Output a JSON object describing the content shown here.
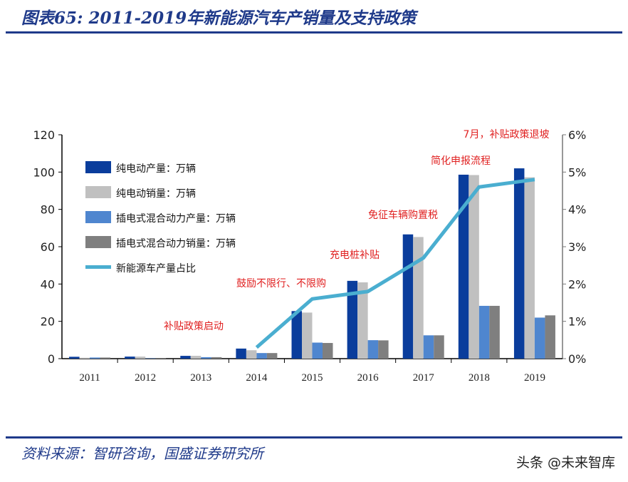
{
  "header": {
    "title": "图表65: 2011-2019年新能源汽车产销量及支持政策"
  },
  "footer": {
    "source": "资料来源：智研咨询，国盛证券研究所",
    "watermark": "头条 @未来智库"
  },
  "chart_data": {
    "type": "bar",
    "categories": [
      "2011",
      "2012",
      "2013",
      "2014",
      "2015",
      "2016",
      "2017",
      "2018",
      "2019"
    ],
    "ylim": [
      0,
      120
    ],
    "yticks": [
      "0",
      "20",
      "40",
      "60",
      "80",
      "100",
      "120"
    ],
    "y2lim": [
      0,
      6
    ],
    "y2ticks": [
      "0%",
      "1%",
      "2%",
      "3%",
      "4%",
      "5%",
      "6%"
    ],
    "series": [
      {
        "name": "纯电动产量：万辆",
        "color": "#0a3d9c",
        "values": [
          1.0,
          1.1,
          1.5,
          5.4,
          25.5,
          41.7,
          66.6,
          98.6,
          102.0
        ]
      },
      {
        "name": "纯电动销量：万辆",
        "color": "#c0c0c0",
        "values": [
          0.5,
          1.1,
          1.5,
          4.5,
          24.7,
          40.9,
          65.2,
          98.4,
          97.2
        ]
      },
      {
        "name": "插电式混合动力产量：万辆",
        "color": "#4f86cf",
        "values": [
          0.6,
          0.2,
          0.8,
          3.0,
          8.6,
          9.9,
          12.5,
          28.3,
          22.0
        ]
      },
      {
        "name": "插电式混合动力销量：万辆",
        "color": "#7f7f7f",
        "values": [
          0.6,
          0.2,
          0.8,
          3.0,
          8.4,
          9.8,
          12.5,
          28.3,
          23.2
        ]
      },
      {
        "name": "新能源车产量占比",
        "type": "line",
        "axis": "right",
        "color": "#4aaed0",
        "values": [
          null,
          null,
          null,
          0.3,
          1.6,
          1.8,
          2.7,
          4.6,
          4.8
        ]
      }
    ],
    "annotations": [
      {
        "text": "补贴政策启动",
        "year": "2013"
      },
      {
        "text": "鼓励不限行、不限购",
        "year": "2014"
      },
      {
        "text": "充电桩补贴",
        "year": "2016"
      },
      {
        "text": "免征车辆购置税",
        "year": "2017"
      },
      {
        "text": "简化申报流程",
        "year": "2018"
      },
      {
        "text": "7月，补贴政策退坡",
        "year": "2019"
      }
    ],
    "legend": "top-left",
    "annotation_color": "#e02020"
  }
}
